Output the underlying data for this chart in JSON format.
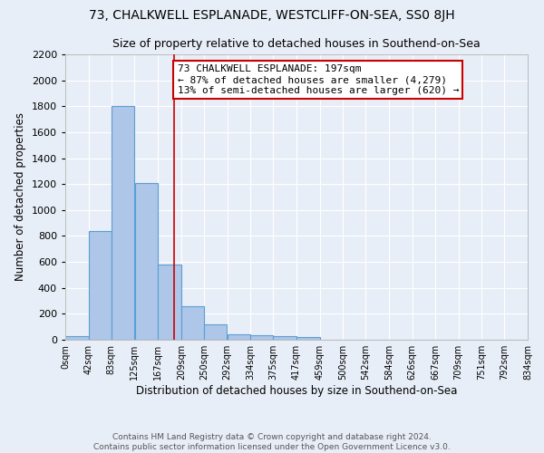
{
  "title": "73, CHALKWELL ESPLANADE, WESTCLIFF-ON-SEA, SS0 8JH",
  "subtitle": "Size of property relative to detached houses in Southend-on-Sea",
  "xlabel": "Distribution of detached houses by size in Southend-on-Sea",
  "ylabel": "Number of detached properties",
  "bin_edges": [
    0,
    42,
    83,
    125,
    167,
    209,
    250,
    292,
    334,
    375,
    417,
    459,
    500,
    542,
    584,
    626,
    667,
    709,
    751,
    792,
    834
  ],
  "bin_labels": [
    "0sqm",
    "42sqm",
    "83sqm",
    "125sqm",
    "167sqm",
    "209sqm",
    "250sqm",
    "292sqm",
    "334sqm",
    "375sqm",
    "417sqm",
    "459sqm",
    "500sqm",
    "542sqm",
    "584sqm",
    "626sqm",
    "667sqm",
    "709sqm",
    "751sqm",
    "792sqm",
    "834sqm"
  ],
  "counts": [
    30,
    840,
    1800,
    1210,
    580,
    255,
    120,
    45,
    35,
    30,
    20,
    0,
    0,
    0,
    0,
    0,
    0,
    0,
    0,
    0
  ],
  "bar_color": "#aec6e8",
  "bar_edge_color": "#5a9fd4",
  "vline_x": 197,
  "vline_color": "#cc0000",
  "annotation_text": "73 CHALKWELL ESPLANADE: 197sqm\n← 87% of detached houses are smaller (4,279)\n13% of semi-detached houses are larger (620) →",
  "annotation_box_color": "#ffffff",
  "annotation_box_edge": "#cc0000",
  "ylim": [
    0,
    2200
  ],
  "yticks": [
    0,
    200,
    400,
    600,
    800,
    1000,
    1200,
    1400,
    1600,
    1800,
    2000,
    2200
  ],
  "footnote": "Contains HM Land Registry data © Crown copyright and database right 2024.\nContains public sector information licensed under the Open Government Licence v3.0.",
  "bg_color": "#e8eef7",
  "plot_bg_color": "#e8eef7",
  "title_fontsize": 10,
  "subtitle_fontsize": 9,
  "annotation_fontsize": 8,
  "footnote_fontsize": 6.5
}
